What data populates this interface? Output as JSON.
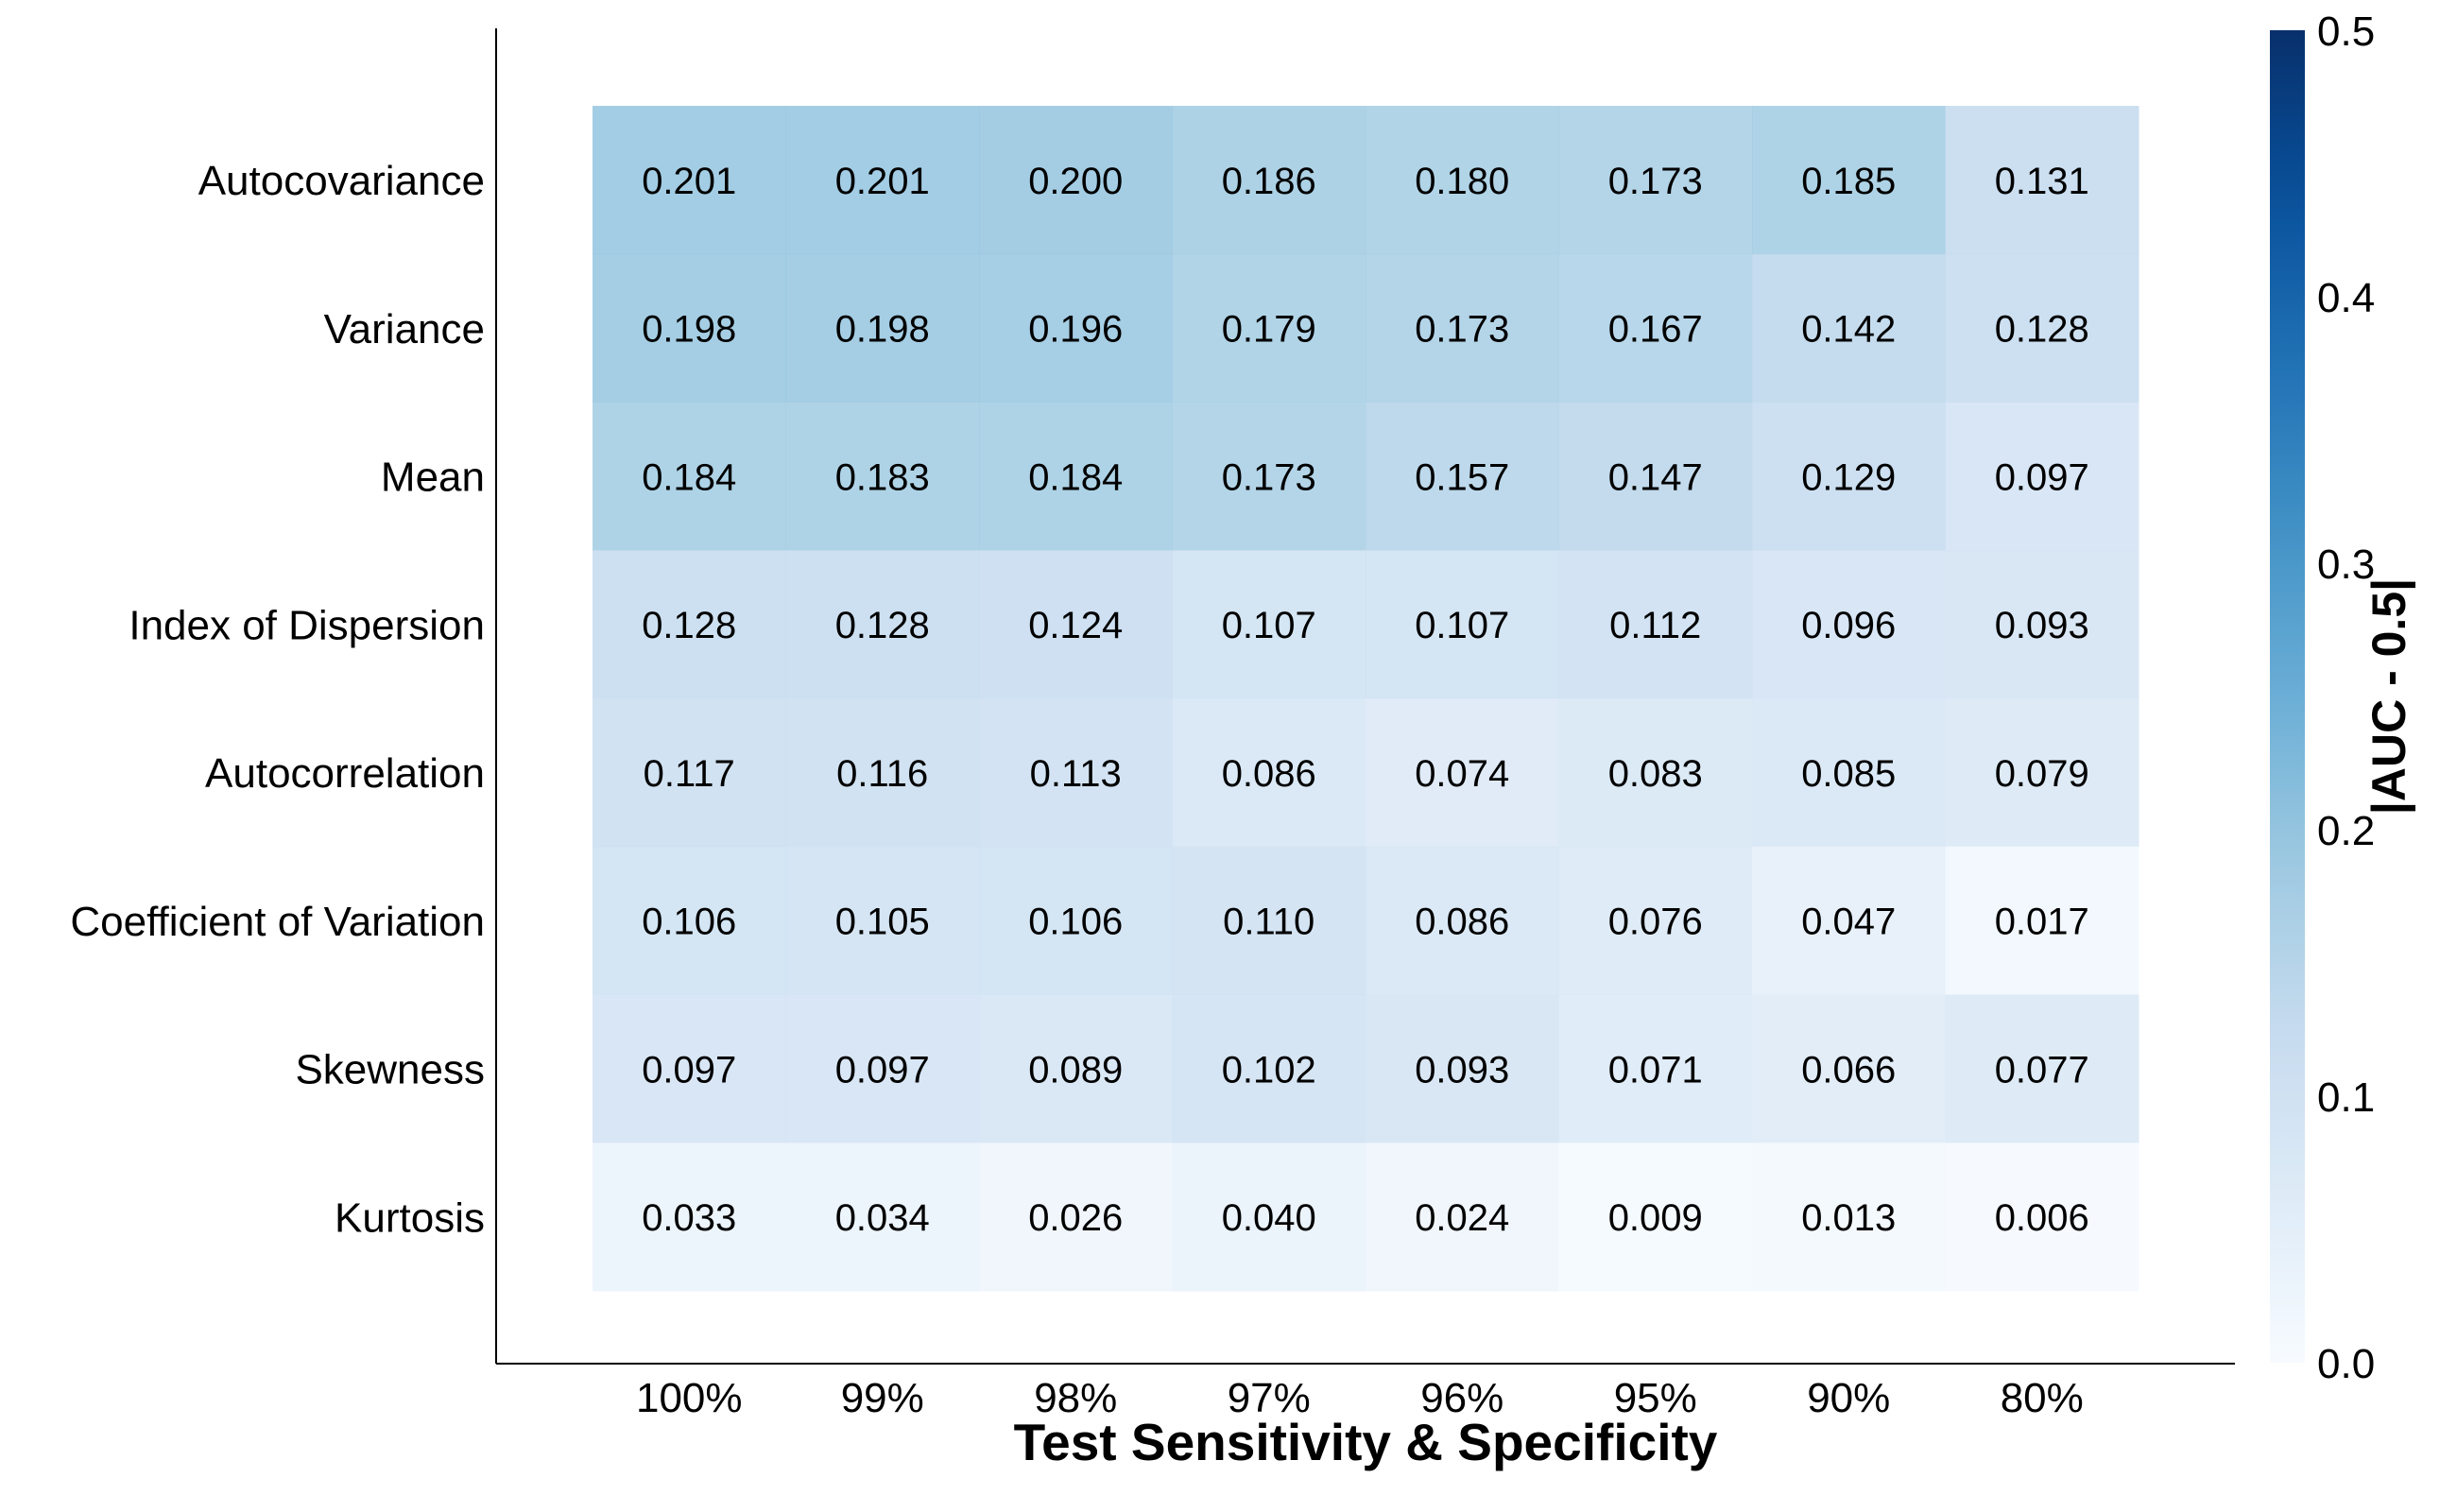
{
  "chart_data": {
    "type": "heatmap",
    "rows": [
      "Autocovariance",
      "Variance",
      "Mean",
      "Index of Dispersion",
      "Autocorrelation",
      "Coefficient of Variation",
      "Skewness",
      "Kurtosis"
    ],
    "columns": [
      "100%",
      "99%",
      "98%",
      "97%",
      "96%",
      "95%",
      "90%",
      "80%"
    ],
    "values": [
      [
        0.201,
        0.201,
        0.2,
        0.186,
        0.18,
        0.173,
        0.185,
        0.131
      ],
      [
        0.198,
        0.198,
        0.196,
        0.179,
        0.173,
        0.167,
        0.142,
        0.128
      ],
      [
        0.184,
        0.183,
        0.184,
        0.173,
        0.157,
        0.147,
        0.129,
        0.097
      ],
      [
        0.128,
        0.128,
        0.124,
        0.107,
        0.107,
        0.112,
        0.096,
        0.093
      ],
      [
        0.117,
        0.116,
        0.113,
        0.086,
        0.074,
        0.083,
        0.085,
        0.079
      ],
      [
        0.106,
        0.105,
        0.106,
        0.11,
        0.086,
        0.076,
        0.047,
        0.017
      ],
      [
        0.097,
        0.097,
        0.089,
        0.102,
        0.093,
        0.071,
        0.066,
        0.077
      ],
      [
        0.033,
        0.034,
        0.026,
        0.04,
        0.024,
        0.009,
        0.013,
        0.006
      ]
    ],
    "value_labels": [
      [
        "0.201",
        "0.201",
        "0.200",
        "0.186",
        "0.180",
        "0.173",
        "0.185",
        "0.131"
      ],
      [
        "0.198",
        "0.198",
        "0.196",
        "0.179",
        "0.173",
        "0.167",
        "0.142",
        "0.128"
      ],
      [
        "0.184",
        "0.183",
        "0.184",
        "0.173",
        "0.157",
        "0.147",
        "0.129",
        "0.097"
      ],
      [
        "0.128",
        "0.128",
        "0.124",
        "0.107",
        "0.107",
        "0.112",
        "0.096",
        "0.093"
      ],
      [
        "0.117",
        "0.116",
        "0.113",
        "0.086",
        "0.074",
        "0.083",
        "0.085",
        "0.079"
      ],
      [
        "0.106",
        "0.105",
        "0.106",
        "0.110",
        "0.086",
        "0.076",
        "0.047",
        "0.017"
      ],
      [
        "0.097",
        "0.097",
        "0.089",
        "0.102",
        "0.093",
        "0.071",
        "0.066",
        "0.077"
      ],
      [
        "0.033",
        "0.034",
        "0.026",
        "0.040",
        "0.024",
        "0.009",
        "0.013",
        "0.006"
      ]
    ],
    "xlabel": "Test Sensitivity & Specificity",
    "colorbar": {
      "label": "|AUC - 0.5|",
      "range": [
        0.0,
        0.5
      ],
      "ticks": [
        0.0,
        0.1,
        0.2,
        0.3,
        0.4,
        0.5
      ],
      "tick_labels": [
        "0.0",
        "0.1",
        "0.2",
        "0.3",
        "0.4",
        "0.5"
      ],
      "colormap": "Blues",
      "color_low": "#f7fbff",
      "color_high": "#08306b"
    }
  }
}
